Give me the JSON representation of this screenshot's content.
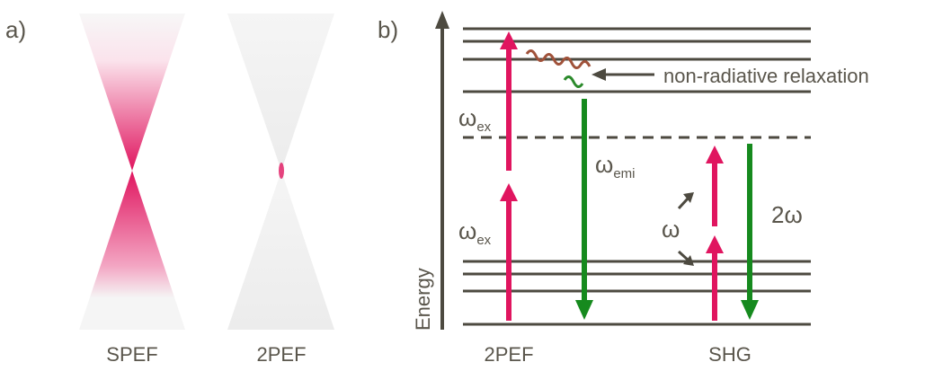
{
  "panel_a": {
    "label": "a)",
    "captions": [
      "SPEF",
      "2PEF"
    ]
  },
  "panel_b": {
    "label": "b)",
    "axis_label": "Energy",
    "captions": [
      "2PEF",
      "SHG"
    ],
    "annotation": "non-radiative relaxation",
    "symbols": [
      {
        "symbol": "ω",
        "subscript": "ex"
      },
      {
        "symbol": "ω",
        "subscript": "emi"
      },
      {
        "symbol": "ω",
        "subscript": "ex"
      },
      {
        "symbol": "ω"
      },
      {
        "symbol": "2ω"
      }
    ]
  }
}
